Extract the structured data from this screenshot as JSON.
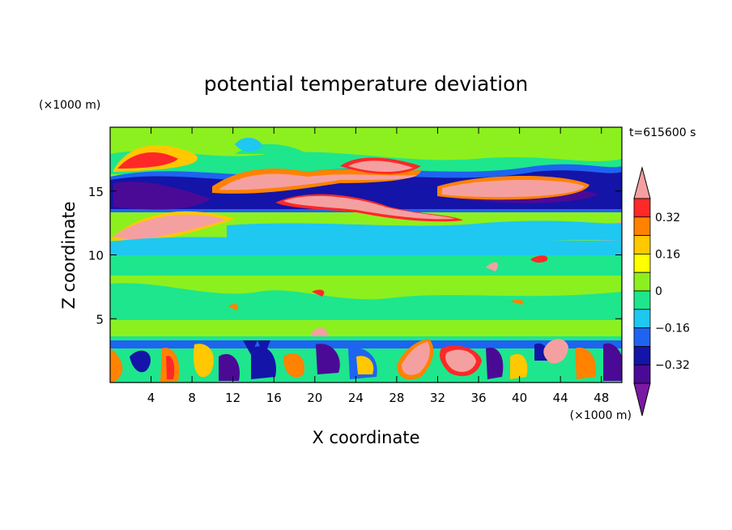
{
  "chart_data": {
    "type": "heatmap",
    "title": "potential temperature deviation",
    "time_label": "t=615600 s",
    "xlabel": "X coordinate",
    "ylabel": "Z coordinate",
    "x_unit": "(×1000 m)",
    "y_unit": "(×1000 m)",
    "xlim": [
      0,
      50
    ],
    "ylim": [
      0,
      20
    ],
    "x_ticks": [
      4,
      8,
      12,
      16,
      20,
      24,
      28,
      32,
      36,
      40,
      44,
      48
    ],
    "y_ticks": [
      5,
      10,
      15
    ],
    "colorbar": {
      "labeled_ticks": [
        "0.32",
        "0.16",
        "0",
        "−0.16",
        "−0.32"
      ],
      "levels": [
        -0.4,
        -0.32,
        -0.24,
        -0.16,
        -0.08,
        0,
        0.08,
        0.16,
        0.24,
        0.32,
        0.4
      ],
      "colors": [
        "#7a1aa4",
        "#4b0a96",
        "#1414a8",
        "#1e64f0",
        "#1ec8f0",
        "#1ee68c",
        "#8cf01e",
        "#ffff00",
        "#ffc800",
        "#ff8200",
        "#ff2828",
        "#f5a0a0"
      ]
    },
    "regions": [
      {
        "z_range": [
          0,
          3.8
        ],
        "description": "mixed strong positive and negative cells"
      },
      {
        "z_range": [
          3.8,
          10.5
        ],
        "description": "weak deviations near 0"
      },
      {
        "z_range": [
          10.5,
          12
        ],
        "description": "negative band ≈ −0.08"
      },
      {
        "z_range": [
          12,
          17
        ],
        "description": "strong positive and negative bands"
      },
      {
        "z_range": [
          17,
          20
        ],
        "description": "weak deviations with positive patches"
      }
    ]
  }
}
